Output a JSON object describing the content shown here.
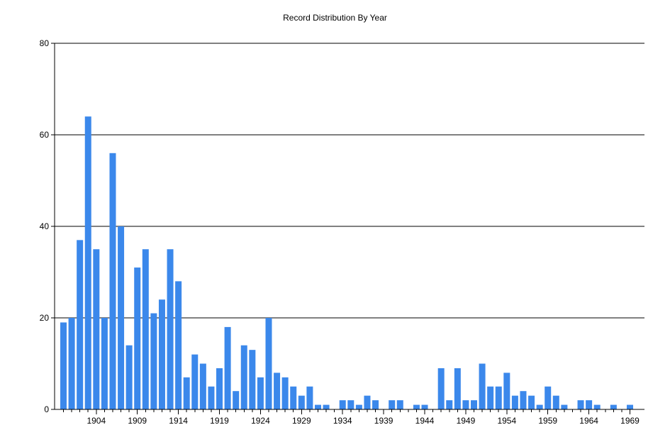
{
  "chart_data": {
    "type": "bar",
    "title": "Record Distribution By Year",
    "xlabel": "",
    "ylabel": "",
    "ylim": [
      0,
      80
    ],
    "yticks": [
      0,
      20,
      40,
      60,
      80
    ],
    "xticks": [
      1904,
      1909,
      1914,
      1919,
      1924,
      1929,
      1934,
      1939,
      1944,
      1949,
      1954,
      1959,
      1964,
      1969
    ],
    "grid": "horizontal",
    "bar_color": "#3b88eb",
    "categories": [
      1900,
      1901,
      1902,
      1903,
      1904,
      1905,
      1906,
      1907,
      1908,
      1909,
      1910,
      1911,
      1912,
      1913,
      1914,
      1915,
      1916,
      1917,
      1918,
      1919,
      1920,
      1921,
      1922,
      1923,
      1924,
      1925,
      1926,
      1927,
      1928,
      1929,
      1930,
      1931,
      1932,
      1933,
      1934,
      1935,
      1936,
      1937,
      1938,
      1939,
      1940,
      1941,
      1942,
      1943,
      1944,
      1945,
      1946,
      1947,
      1948,
      1949,
      1950,
      1951,
      1952,
      1953,
      1954,
      1955,
      1956,
      1957,
      1958,
      1959,
      1960,
      1961,
      1962,
      1963,
      1964,
      1965,
      1966,
      1967,
      1968,
      1969
    ],
    "values": [
      19,
      20,
      37,
      64,
      35,
      20,
      56,
      40,
      14,
      31,
      35,
      21,
      24,
      35,
      28,
      7,
      12,
      10,
      5,
      9,
      18,
      4,
      14,
      13,
      7,
      20,
      8,
      7,
      5,
      3,
      5,
      1,
      1,
      0,
      2,
      2,
      1,
      3,
      2,
      0,
      2,
      2,
      0,
      1,
      1,
      0,
      9,
      2,
      9,
      2,
      2,
      10,
      5,
      5,
      8,
      3,
      4,
      3,
      1,
      5,
      3,
      1,
      0,
      2,
      2,
      1,
      0,
      1,
      0,
      1
    ]
  }
}
